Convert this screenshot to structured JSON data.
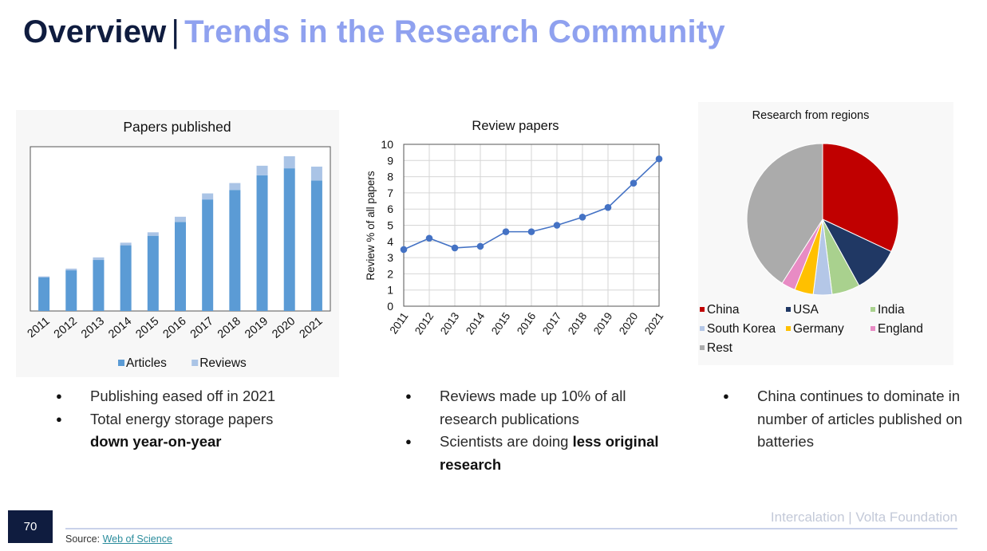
{
  "header": {
    "title_main": "Overview",
    "separator": "|",
    "title_sub": "Trends in the Research Community"
  },
  "chart_data": [
    {
      "type": "bar",
      "stacked": true,
      "title": "Papers published",
      "categories": [
        "2011",
        "2012",
        "2013",
        "2014",
        "2015",
        "2016",
        "2017",
        "2018",
        "2019",
        "2020",
        "2021"
      ],
      "series": [
        {
          "name": "Articles",
          "color": "#5b9bd5",
          "values": [
            39,
            47,
            59,
            76,
            87,
            103,
            129,
            140,
            157,
            165,
            151
          ]
        },
        {
          "name": "Reviews",
          "color": "#aac4e6",
          "values": [
            1,
            2,
            3,
            3,
            4,
            6,
            7,
            8,
            11,
            14,
            16
          ]
        }
      ],
      "ylim": [
        0,
        190
      ],
      "legend_position": "bottom"
    },
    {
      "type": "line",
      "title": "Review papers",
      "ylabel": "Review % of all papers",
      "x": [
        "2011",
        "2012",
        "2013",
        "2014",
        "2015",
        "2016",
        "2017",
        "2018",
        "2019",
        "2020",
        "2021"
      ],
      "series": [
        {
          "color": "#4472c4",
          "values": [
            3.5,
            4.2,
            3.6,
            3.7,
            4.6,
            4.6,
            5.0,
            5.5,
            6.1,
            7.6,
            9.1
          ]
        }
      ],
      "yticks": [
        "0",
        "1",
        "2",
        "3",
        "4",
        "5",
        "6",
        "7",
        "8",
        "9",
        "10"
      ],
      "ylim": [
        0,
        10
      ]
    },
    {
      "type": "pie",
      "title": "Research from regions",
      "slices": [
        {
          "label": "China",
          "value": 32,
          "color": "#c00000"
        },
        {
          "label": "USA",
          "value": 10,
          "color": "#203864"
        },
        {
          "label": "India",
          "value": 6,
          "color": "#a9d18e"
        },
        {
          "label": "South Korea",
          "value": 4,
          "color": "#b4c7e7"
        },
        {
          "label": "Germany",
          "value": 4,
          "color": "#ffc000"
        },
        {
          "label": "England",
          "value": 3,
          "color": "#e88bc4"
        },
        {
          "label": "Rest",
          "value": 41,
          "color": "#ababab"
        }
      ],
      "legend_position": "bottom"
    }
  ],
  "bullets": {
    "col1": {
      "item1": "Publishing eased off in 2021",
      "item2_text": "Total energy storage papers",
      "item2_bold": "down year-on-year"
    },
    "col2": {
      "item1": "Reviews made up 10% of all research publications",
      "item2_text": "Scientists are doing",
      "item2_bold": "less original research"
    },
    "col3": {
      "item1": "China continues to dominate in number of articles published on batteries"
    }
  },
  "footer": {
    "page_number": "70",
    "brand": "Intercalation | Volta Foundation",
    "source_label": "Source:",
    "source_link": "Web of Science"
  }
}
